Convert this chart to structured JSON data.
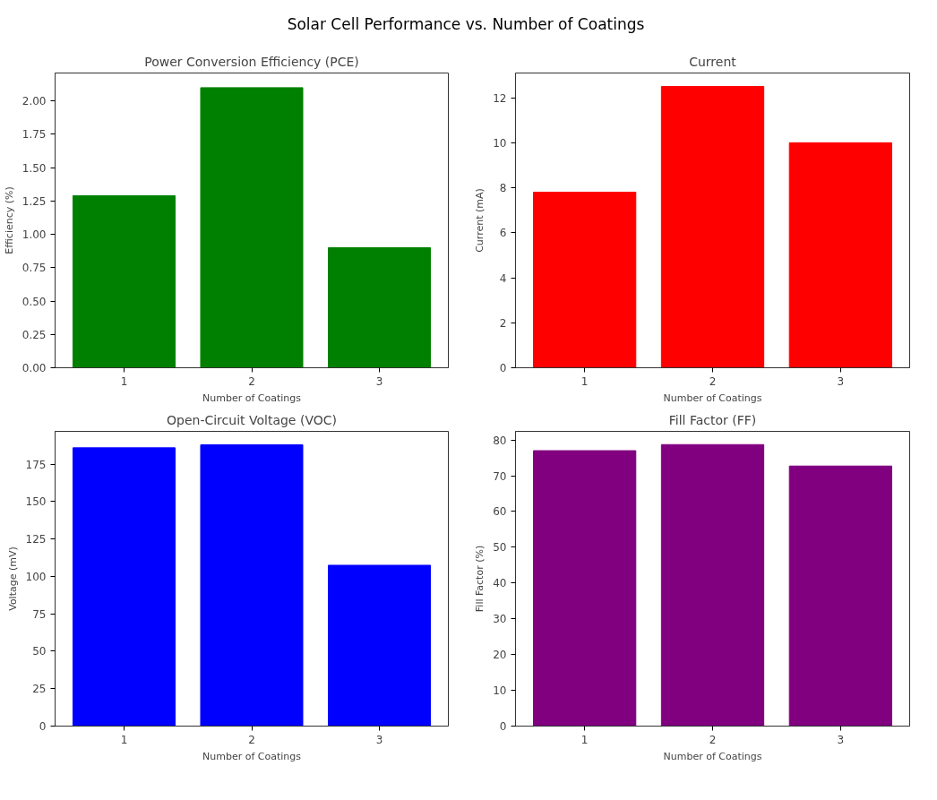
{
  "chart_data": [
    {
      "type": "bar",
      "title": "Power Conversion Efficiency (PCE)",
      "xlabel": "Number of Coatings",
      "ylabel": "Efficiency (%)",
      "categories": [
        "1",
        "2",
        "3"
      ],
      "values": [
        1.29,
        2.1,
        0.9
      ],
      "color": "#008000",
      "ylim": [
        0,
        2.21
      ],
      "yticks": [
        {
          "value": 0,
          "label": "0.00"
        },
        0.25,
        {
          "value": 0.5,
          "label": "0.50"
        },
        0.75,
        {
          "value": 1,
          "label": "1.00"
        },
        1.25,
        {
          "value": 1.5,
          "label": "1.50"
        },
        1.75,
        {
          "value": 2,
          "label": "2.00"
        }
      ],
      "grid": false,
      "annotations": [
        "Solar Cell Performance vs. Number of Coatings"
      ]
    },
    {
      "type": "bar",
      "title": "Current",
      "xlabel": "Number of Coatings",
      "ylabel": "Current (mA)",
      "categories": [
        "1",
        "2",
        "3"
      ],
      "values": [
        7.8,
        12.5,
        10
      ],
      "color": "#ff0000",
      "ylim": [
        0,
        13.1
      ],
      "yticks": [
        0,
        2,
        4,
        6,
        8,
        10,
        12
      ],
      "grid": false
    },
    {
      "type": "bar",
      "title": "Open-Circuit Voltage (VOC)",
      "xlabel": "Number of Coatings",
      "ylabel": "Voltage (mV)",
      "categories": [
        "1",
        "2",
        "3"
      ],
      "values": [
        186,
        188,
        107.5
      ],
      "color": "#0000ff",
      "ylim": [
        0,
        197
      ],
      "yticks": [
        0,
        25,
        50,
        75,
        100,
        125,
        150,
        175
      ],
      "grid": false
    },
    {
      "type": "bar",
      "title": "Fill Factor (FF)",
      "xlabel": "Number of Coatings",
      "ylabel": "Fill Factor (%)",
      "categories": [
        "1",
        "2",
        "3"
      ],
      "values": [
        77,
        78.7,
        72.7
      ],
      "color": "#800080",
      "ylim": [
        0,
        82.4
      ],
      "yticks": [
        0,
        10,
        20,
        30,
        40,
        50,
        60,
        70,
        80
      ],
      "grid": false
    }
  ]
}
